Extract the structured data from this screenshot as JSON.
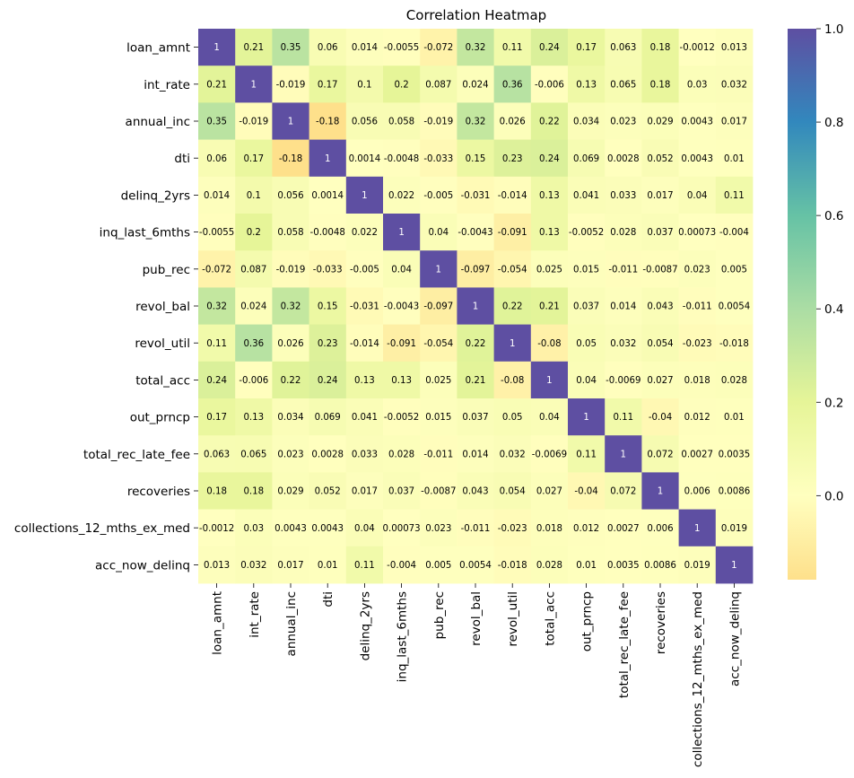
{
  "chart_data": {
    "type": "heatmap",
    "title": "Correlation Heatmap",
    "xlabel": "",
    "ylabel": "",
    "labels": [
      "loan_amnt",
      "int_rate",
      "annual_inc",
      "dti",
      "delinq_2yrs",
      "inq_last_6mths",
      "pub_rec",
      "revol_bal",
      "revol_util",
      "total_acc",
      "out_prncp",
      "total_rec_late_fee",
      "recoveries",
      "collections_12_mths_ex_med",
      "acc_now_delinq"
    ],
    "annotations": [
      [
        "1",
        "0.21",
        "0.35",
        "0.06",
        "0.014",
        "-0.0055",
        "-0.072",
        "0.32",
        "0.11",
        "0.24",
        "0.17",
        "0.063",
        "0.18",
        "-0.0012",
        "0.013"
      ],
      [
        "0.21",
        "1",
        "-0.019",
        "0.17",
        "0.1",
        "0.2",
        "0.087",
        "0.024",
        "0.36",
        "-0.006",
        "0.13",
        "0.065",
        "0.18",
        "0.03",
        "0.032"
      ],
      [
        "0.35",
        "-0.019",
        "1",
        "-0.18",
        "0.056",
        "0.058",
        "-0.019",
        "0.32",
        "0.026",
        "0.22",
        "0.034",
        "0.023",
        "0.029",
        "0.0043",
        "0.017"
      ],
      [
        "0.06",
        "0.17",
        "-0.18",
        "1",
        "0.0014",
        "-0.0048",
        "-0.033",
        "0.15",
        "0.23",
        "0.24",
        "0.069",
        "0.0028",
        "0.052",
        "0.0043",
        "0.01"
      ],
      [
        "0.014",
        "0.1",
        "0.056",
        "0.0014",
        "1",
        "0.022",
        "-0.005",
        "-0.031",
        "-0.014",
        "0.13",
        "0.041",
        "0.033",
        "0.017",
        "0.04",
        "0.11"
      ],
      [
        "-0.0055",
        "0.2",
        "0.058",
        "-0.0048",
        "0.022",
        "1",
        "0.04",
        "-0.0043",
        "-0.091",
        "0.13",
        "-0.0052",
        "0.028",
        "0.037",
        "0.00073",
        "-0.004"
      ],
      [
        "-0.072",
        "0.087",
        "-0.019",
        "-0.033",
        "-0.005",
        "0.04",
        "1",
        "-0.097",
        "-0.054",
        "0.025",
        "0.015",
        "-0.011",
        "-0.0087",
        "0.023",
        "0.005"
      ],
      [
        "0.32",
        "0.024",
        "0.32",
        "0.15",
        "-0.031",
        "-0.0043",
        "-0.097",
        "1",
        "0.22",
        "0.21",
        "0.037",
        "0.014",
        "0.043",
        "-0.011",
        "0.0054"
      ],
      [
        "0.11",
        "0.36",
        "0.026",
        "0.23",
        "-0.014",
        "-0.091",
        "-0.054",
        "0.22",
        "1",
        "-0.08",
        "0.05",
        "0.032",
        "0.054",
        "-0.023",
        "-0.018"
      ],
      [
        "0.24",
        "-0.006",
        "0.22",
        "0.24",
        "0.13",
        "0.13",
        "0.025",
        "0.21",
        "-0.08",
        "1",
        "0.04",
        "-0.0069",
        "0.027",
        "0.018",
        "0.028"
      ],
      [
        "0.17",
        "0.13",
        "0.034",
        "0.069",
        "0.041",
        "-0.0052",
        "0.015",
        "0.037",
        "0.05",
        "0.04",
        "1",
        "0.11",
        "-0.04",
        "0.012",
        "0.01"
      ],
      [
        "0.063",
        "0.065",
        "0.023",
        "0.0028",
        "0.033",
        "0.028",
        "-0.011",
        "0.014",
        "0.032",
        "-0.0069",
        "0.11",
        "1",
        "0.072",
        "0.0027",
        "0.0035"
      ],
      [
        "0.18",
        "0.18",
        "0.029",
        "0.052",
        "0.017",
        "0.037",
        "-0.0087",
        "0.043",
        "0.054",
        "0.027",
        "-0.04",
        "0.072",
        "1",
        "0.006",
        "0.0086"
      ],
      [
        "-0.0012",
        "0.03",
        "0.0043",
        "0.0043",
        "0.04",
        "0.00073",
        "0.023",
        "-0.011",
        "-0.023",
        "0.018",
        "0.012",
        "0.0027",
        "0.006",
        "1",
        "0.019"
      ],
      [
        "0.013",
        "0.032",
        "0.017",
        "0.01",
        "0.11",
        "-0.004",
        "0.005",
        "0.0054",
        "-0.018",
        "0.028",
        "0.01",
        "0.0035",
        "0.0086",
        "0.019",
        "1"
      ]
    ],
    "colorbar": {
      "vmin": -0.18,
      "vmax": 1.0,
      "ticks": [
        0.0,
        0.2,
        0.4,
        0.6,
        0.8,
        1.0
      ],
      "tick_labels": [
        "0.0",
        "0.2",
        "0.4",
        "0.6",
        "0.8",
        "1.0"
      ],
      "colormap": "Spectral-centered",
      "stops": [
        {
          "v": -0.18,
          "color": "#fee08b"
        },
        {
          "v": 0.0,
          "color": "#ffffbf"
        },
        {
          "v": 0.2,
          "color": "#e6f598"
        },
        {
          "v": 0.4,
          "color": "#abdda4"
        },
        {
          "v": 0.6,
          "color": "#66c2a5"
        },
        {
          "v": 0.8,
          "color": "#3288bd"
        },
        {
          "v": 1.0,
          "color": "#5e4fa2"
        }
      ]
    },
    "grid": false,
    "legend": "colorbar-right"
  }
}
